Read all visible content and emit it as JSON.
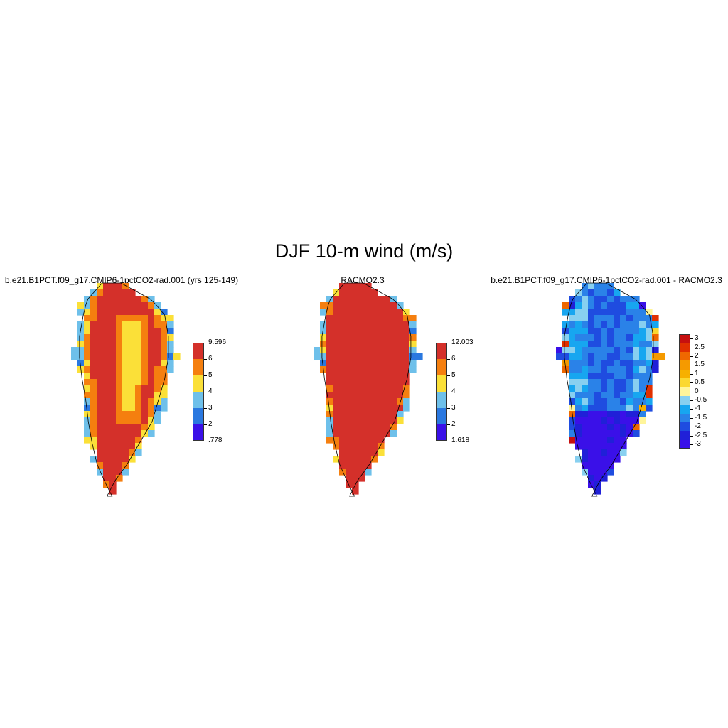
{
  "title": "DJF 10-m wind (m/s)",
  "panels": [
    {
      "id": "model",
      "title": "b.e21.B1PCT.f09_g17.CMIP6-1pctCO2-rad.001 (yrs 125-149)",
      "colorbar": {
        "colors": [
          "#3a10e8",
          "#2a78e0",
          "#6ec0ea",
          "#fbe038",
          "#f57f0f",
          "#d4302a"
        ],
        "labels": [
          ".778",
          "2",
          "3",
          "4",
          "5",
          "6",
          "9.596"
        ]
      }
    },
    {
      "id": "racmo",
      "title": "RACMO2.3",
      "colorbar": {
        "colors": [
          "#3a10e8",
          "#2a78e0",
          "#6ec0ea",
          "#fbe038",
          "#f57f0f",
          "#d4302a"
        ],
        "labels": [
          "1.618",
          "2",
          "3",
          "4",
          "5",
          "6",
          "12.003"
        ]
      }
    },
    {
      "id": "difference",
      "title": "b.e21.B1PCT.f09_g17.CMIP6-1pctCO2-rad.001 - RACMO2.3",
      "colorbar": {
        "colors": [
          "#3a10e8",
          "#2020d8",
          "#1f4ce0",
          "#2a82e8",
          "#17a6f0",
          "#88d0f0",
          "#fff59a",
          "#fbd830",
          "#f7b000",
          "#f59a00",
          "#ef6800",
          "#e03000",
          "#c61010"
        ],
        "labels": [
          "-3",
          "-2.5",
          "-2",
          "-1.5",
          "-1",
          "-0.5",
          "0",
          "0.5",
          "1",
          "1.5",
          "2",
          "2.5",
          "3"
        ]
      }
    }
  ]
}
